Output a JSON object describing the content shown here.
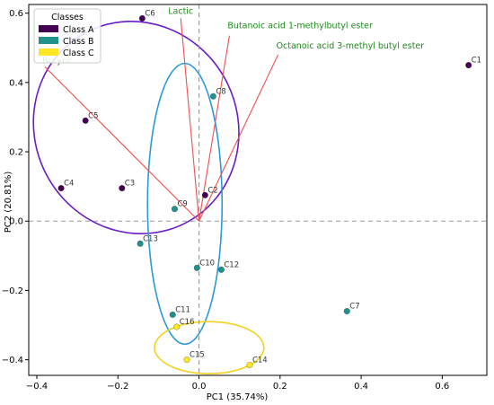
{
  "chart_data": {
    "type": "scatter",
    "title": "",
    "xlabel": "PC1 (35.74%)",
    "ylabel": "PC2 (20.81%)",
    "xlim": [
      -0.42,
      0.71
    ],
    "ylim": [
      -0.445,
      0.625
    ],
    "xticks": [
      -0.4,
      -0.2,
      0.0,
      0.2,
      0.4,
      0.6
    ],
    "xtick_labels": [
      "−0.4",
      "−0.2",
      "0.0",
      "0.2",
      "0.4",
      "0.6"
    ],
    "yticks": [
      -0.4,
      -0.2,
      0.0,
      0.2,
      0.4,
      0.6
    ],
    "ytick_labels": [
      "−0.4",
      "−0.2",
      "0.0",
      "0.2",
      "0.4",
      "0.6"
    ],
    "grid": false,
    "zero_lines": "dashed",
    "legend": {
      "title": "Classes",
      "placement": "top-left",
      "entries": [
        {
          "label": "Class A",
          "color": "#440154"
        },
        {
          "label": "Class B",
          "color": "#21918c"
        },
        {
          "label": "Class C",
          "color": "#fde725"
        }
      ]
    },
    "points": [
      {
        "label": "C1",
        "x": 0.665,
        "y": 0.45,
        "class": "Class A"
      },
      {
        "label": "C2",
        "x": 0.015,
        "y": 0.075,
        "class": "Class A"
      },
      {
        "label": "C3",
        "x": -0.19,
        "y": 0.095,
        "class": "Class A"
      },
      {
        "label": "C4",
        "x": -0.34,
        "y": 0.095,
        "class": "Class A"
      },
      {
        "label": "C5",
        "x": -0.28,
        "y": 0.29,
        "class": "Class A"
      },
      {
        "label": "C6",
        "x": -0.14,
        "y": 0.585,
        "class": "Class A"
      },
      {
        "label": "C7",
        "x": 0.365,
        "y": -0.26,
        "class": "Class B"
      },
      {
        "label": "C8",
        "x": 0.035,
        "y": 0.36,
        "class": "Class B"
      },
      {
        "label": "C9",
        "x": -0.06,
        "y": 0.035,
        "class": "Class B"
      },
      {
        "label": "C10",
        "x": -0.005,
        "y": -0.135,
        "class": "Class B"
      },
      {
        "label": "C11",
        "x": -0.065,
        "y": -0.27,
        "class": "Class B"
      },
      {
        "label": "C12",
        "x": 0.055,
        "y": -0.14,
        "class": "Class B"
      },
      {
        "label": "C13",
        "x": -0.145,
        "y": -0.065,
        "class": "Class B"
      },
      {
        "label": "C14",
        "x": 0.125,
        "y": -0.415,
        "class": "Class C"
      },
      {
        "label": "C15",
        "x": -0.03,
        "y": -0.4,
        "class": "Class C"
      },
      {
        "label": "C16",
        "x": -0.055,
        "y": -0.305,
        "class": "Class C"
      }
    ],
    "loading_vectors": [
      {
        "label": "Butyric",
        "x": -0.38,
        "y": 0.445
      },
      {
        "label": "Lactic",
        "x": -0.045,
        "y": 0.585
      },
      {
        "label": "Butanoic acid 1-methylbutyl ester",
        "x": 0.075,
        "y": 0.535
      },
      {
        "label": "Octanoic acid 3-methyl butyl ester",
        "x": 0.195,
        "y": 0.48
      }
    ],
    "vector_color": "#f05050",
    "vector_label_color": "#1f8a1f",
    "class_ellipses": [
      {
        "class": "Class A",
        "color": "#6a1cc8",
        "center_x": -0.155,
        "center_y": 0.27,
        "radius_x": 0.25,
        "radius_y": 0.31,
        "angle_deg": -28
      },
      {
        "class": "Class B",
        "color": "#2a9ad8",
        "center_x": -0.035,
        "center_y": 0.05,
        "radius_x": 0.092,
        "radius_y": 0.405,
        "angle_deg": 0
      },
      {
        "class": "Class C",
        "color": "#f2d21f",
        "center_x": 0.025,
        "center_y": -0.365,
        "radius_x": 0.135,
        "radius_y": 0.075,
        "angle_deg": 0
      }
    ]
  }
}
